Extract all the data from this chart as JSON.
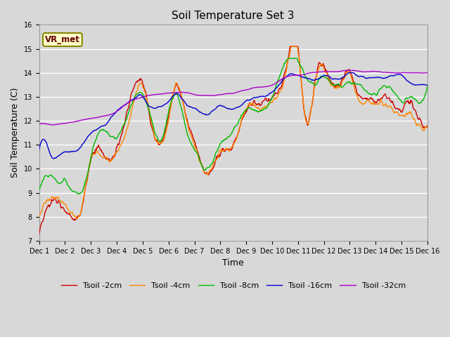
{
  "title": "Soil Temperature Set 3",
  "xlabel": "Time",
  "ylabel": "Soil Temperature (C)",
  "ylim": [
    7.0,
    16.0
  ],
  "yticks": [
    7.0,
    8.0,
    9.0,
    10.0,
    11.0,
    12.0,
    13.0,
    14.0,
    15.0,
    16.0
  ],
  "xtick_labels": [
    "Dec 1",
    "Dec 2",
    "Dec 3",
    "Dec 4",
    "Dec 5",
    "Dec 6",
    "Dec 7",
    "Dec 8",
    "Dec 9",
    "Dec 10",
    "Dec 11",
    "Dec 12",
    "Dec 13",
    "Dec 14",
    "Dec 15",
    "Dec 16"
  ],
  "station_label": "VR_met",
  "series_order": [
    "Tsoil -2cm",
    "Tsoil -4cm",
    "Tsoil -8cm",
    "Tsoil -16cm",
    "Tsoil -32cm"
  ],
  "colors": [
    "#cc0000",
    "#ff8800",
    "#00bb00",
    "#0000cc",
    "#aa00cc"
  ],
  "lw": 1.0,
  "fig_bg": "#d8d8d8",
  "ax_bg": "#d8d8d8",
  "grid_color": "#ffffff",
  "title_fontsize": 11,
  "label_fontsize": 9,
  "tick_fontsize": 7,
  "legend_fontsize": 8
}
